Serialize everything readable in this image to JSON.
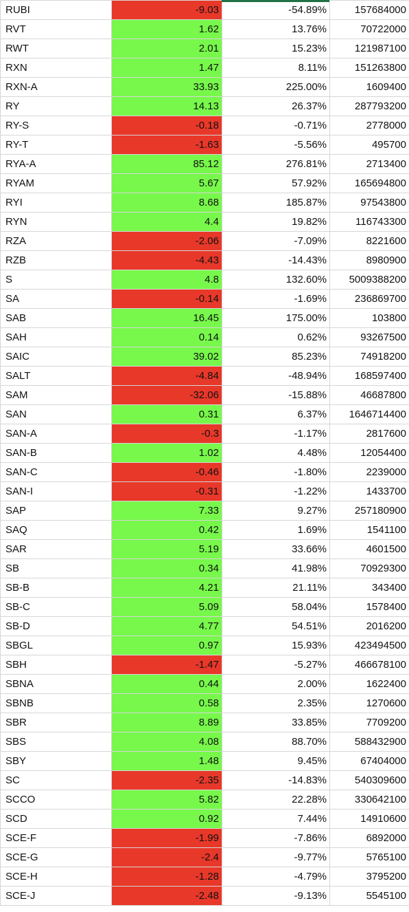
{
  "colors": {
    "positive": "#77f84b",
    "negative": "#e8382a",
    "grid": "#d6d6d6",
    "selection_accent": "#1e7145"
  },
  "rows": [
    {
      "ticker": "RUBI",
      "change": "-9.03",
      "pct": "-54.89%",
      "volume": "157684000",
      "sign": "neg"
    },
    {
      "ticker": "RVT",
      "change": "1.62",
      "pct": "13.76%",
      "volume": "70722000",
      "sign": "pos"
    },
    {
      "ticker": "RWT",
      "change": "2.01",
      "pct": "15.23%",
      "volume": "121987100",
      "sign": "pos"
    },
    {
      "ticker": "RXN",
      "change": "1.47",
      "pct": "8.11%",
      "volume": "151263800",
      "sign": "pos"
    },
    {
      "ticker": "RXN-A",
      "change": "33.93",
      "pct": "225.00%",
      "volume": "1609400",
      "sign": "pos"
    },
    {
      "ticker": "RY",
      "change": "14.13",
      "pct": "26.37%",
      "volume": "287793200",
      "sign": "pos"
    },
    {
      "ticker": "RY-S",
      "change": "-0.18",
      "pct": "-0.71%",
      "volume": "2778000",
      "sign": "neg"
    },
    {
      "ticker": "RY-T",
      "change": "-1.63",
      "pct": "-5.56%",
      "volume": "495700",
      "sign": "neg"
    },
    {
      "ticker": "RYA-A",
      "change": "85.12",
      "pct": "276.81%",
      "volume": "2713400",
      "sign": "pos"
    },
    {
      "ticker": "RYAM",
      "change": "5.67",
      "pct": "57.92%",
      "volume": "165694800",
      "sign": "pos"
    },
    {
      "ticker": "RYI",
      "change": "8.68",
      "pct": "185.87%",
      "volume": "97543800",
      "sign": "pos"
    },
    {
      "ticker": "RYN",
      "change": "4.4",
      "pct": "19.82%",
      "volume": "116743300",
      "sign": "pos"
    },
    {
      "ticker": "RZA",
      "change": "-2.06",
      "pct": "-7.09%",
      "volume": "8221600",
      "sign": "neg"
    },
    {
      "ticker": "RZB",
      "change": "-4.43",
      "pct": "-14.43%",
      "volume": "8980900",
      "sign": "neg"
    },
    {
      "ticker": "S",
      "change": "4.8",
      "pct": "132.60%",
      "volume": "5009388200",
      "sign": "pos"
    },
    {
      "ticker": "SA",
      "change": "-0.14",
      "pct": "-1.69%",
      "volume": "236869700",
      "sign": "neg"
    },
    {
      "ticker": "SAB",
      "change": "16.45",
      "pct": "175.00%",
      "volume": "103800",
      "sign": "pos"
    },
    {
      "ticker": "SAH",
      "change": "0.14",
      "pct": "0.62%",
      "volume": "93267500",
      "sign": "pos"
    },
    {
      "ticker": "SAIC",
      "change": "39.02",
      "pct": "85.23%",
      "volume": "74918200",
      "sign": "pos"
    },
    {
      "ticker": "SALT",
      "change": "-4.84",
      "pct": "-48.94%",
      "volume": "168597400",
      "sign": "neg"
    },
    {
      "ticker": "SAM",
      "change": "-32.06",
      "pct": "-15.88%",
      "volume": "46687800",
      "sign": "neg"
    },
    {
      "ticker": "SAN",
      "change": "0.31",
      "pct": "6.37%",
      "volume": "1646714400",
      "sign": "pos"
    },
    {
      "ticker": "SAN-A",
      "change": "-0.3",
      "pct": "-1.17%",
      "volume": "2817600",
      "sign": "neg"
    },
    {
      "ticker": "SAN-B",
      "change": "1.02",
      "pct": "4.48%",
      "volume": "12054400",
      "sign": "pos"
    },
    {
      "ticker": "SAN-C",
      "change": "-0.46",
      "pct": "-1.80%",
      "volume": "2239000",
      "sign": "neg"
    },
    {
      "ticker": "SAN-I",
      "change": "-0.31",
      "pct": "-1.22%",
      "volume": "1433700",
      "sign": "neg"
    },
    {
      "ticker": "SAP",
      "change": "7.33",
      "pct": "9.27%",
      "volume": "257180900",
      "sign": "pos"
    },
    {
      "ticker": "SAQ",
      "change": "0.42",
      "pct": "1.69%",
      "volume": "1541100",
      "sign": "pos"
    },
    {
      "ticker": "SAR",
      "change": "5.19",
      "pct": "33.66%",
      "volume": "4601500",
      "sign": "pos"
    },
    {
      "ticker": "SB",
      "change": "0.34",
      "pct": "41.98%",
      "volume": "70929300",
      "sign": "pos"
    },
    {
      "ticker": "SB-B",
      "change": "4.21",
      "pct": "21.11%",
      "volume": "343400",
      "sign": "pos"
    },
    {
      "ticker": "SB-C",
      "change": "5.09",
      "pct": "58.04%",
      "volume": "1578400",
      "sign": "pos"
    },
    {
      "ticker": "SB-D",
      "change": "4.77",
      "pct": "54.51%",
      "volume": "2016200",
      "sign": "pos"
    },
    {
      "ticker": "SBGL",
      "change": "0.97",
      "pct": "15.93%",
      "volume": "423494500",
      "sign": "pos"
    },
    {
      "ticker": "SBH",
      "change": "-1.47",
      "pct": "-5.27%",
      "volume": "466678100",
      "sign": "neg"
    },
    {
      "ticker": "SBNA",
      "change": "0.44",
      "pct": "2.00%",
      "volume": "1622400",
      "sign": "pos"
    },
    {
      "ticker": "SBNB",
      "change": "0.58",
      "pct": "2.35%",
      "volume": "1270600",
      "sign": "pos"
    },
    {
      "ticker": "SBR",
      "change": "8.89",
      "pct": "33.85%",
      "volume": "7709200",
      "sign": "pos"
    },
    {
      "ticker": "SBS",
      "change": "4.08",
      "pct": "88.70%",
      "volume": "588432900",
      "sign": "pos"
    },
    {
      "ticker": "SBY",
      "change": "1.48",
      "pct": "9.45%",
      "volume": "67404000",
      "sign": "pos"
    },
    {
      "ticker": "SC",
      "change": "-2.35",
      "pct": "-14.83%",
      "volume": "540309600",
      "sign": "neg"
    },
    {
      "ticker": "SCCO",
      "change": "5.82",
      "pct": "22.28%",
      "volume": "330642100",
      "sign": "pos"
    },
    {
      "ticker": "SCD",
      "change": "0.92",
      "pct": "7.44%",
      "volume": "14910600",
      "sign": "pos"
    },
    {
      "ticker": "SCE-F",
      "change": "-1.99",
      "pct": "-7.86%",
      "volume": "6892000",
      "sign": "neg"
    },
    {
      "ticker": "SCE-G",
      "change": "-2.4",
      "pct": "-9.77%",
      "volume": "5765100",
      "sign": "neg"
    },
    {
      "ticker": "SCE-H",
      "change": "-1.28",
      "pct": "-4.79%",
      "volume": "3795200",
      "sign": "neg"
    },
    {
      "ticker": "SCE-J",
      "change": "-2.48",
      "pct": "-9.13%",
      "volume": "5545100",
      "sign": "neg"
    }
  ]
}
